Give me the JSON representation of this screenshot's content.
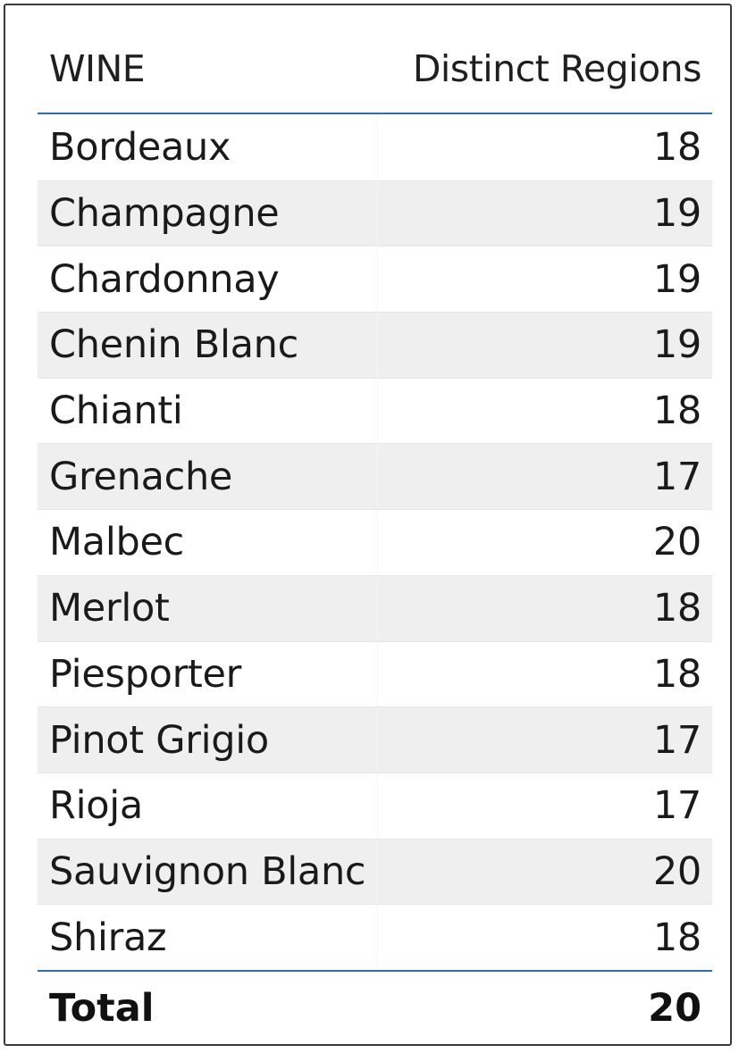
{
  "table": {
    "headers": {
      "wine": "WINE",
      "regions": "Distinct Regions"
    },
    "rows": [
      {
        "wine": "Bordeaux",
        "regions": "18"
      },
      {
        "wine": "Champagne",
        "regions": "19"
      },
      {
        "wine": "Chardonnay",
        "regions": "19"
      },
      {
        "wine": "Chenin Blanc",
        "regions": "19"
      },
      {
        "wine": "Chianti",
        "regions": "18"
      },
      {
        "wine": "Grenache",
        "regions": "17"
      },
      {
        "wine": "Malbec",
        "regions": "20"
      },
      {
        "wine": "Merlot",
        "regions": "18"
      },
      {
        "wine": "Piesporter",
        "regions": "18"
      },
      {
        "wine": "Pinot Grigio",
        "regions": "17"
      },
      {
        "wine": "Rioja",
        "regions": "17"
      },
      {
        "wine": "Sauvignon Blanc",
        "regions": "20"
      },
      {
        "wine": "Shiraz",
        "regions": "18"
      }
    ],
    "total": {
      "label": "Total",
      "value": "20"
    }
  },
  "colors": {
    "accent_line": "#2f6db5",
    "alt_row": "#efefef",
    "frame_border": "#3a3a3a"
  }
}
